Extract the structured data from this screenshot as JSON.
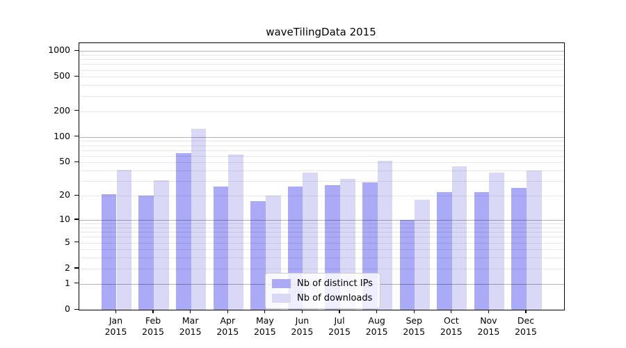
{
  "title": "waveTilingData 2015",
  "chart_data": {
    "type": "bar",
    "title": "waveTilingData 2015",
    "categories": [
      "Jan",
      "Feb",
      "Mar",
      "Apr",
      "May",
      "Jun",
      "Jul",
      "Aug",
      "Sep",
      "Oct",
      "Nov",
      "Dec"
    ],
    "category_year": "2015",
    "series": [
      {
        "name": "Nb of distinct IPs",
        "color": "#aaaaf7",
        "values": [
          21,
          20,
          64,
          26,
          17,
          26,
          27,
          29,
          10,
          22,
          22,
          25
        ]
      },
      {
        "name": "Nb of downloads",
        "color": "#d9d9f7",
        "values": [
          41,
          31,
          124,
          62,
          20,
          38,
          32,
          52,
          18,
          45,
          38,
          40
        ]
      }
    ],
    "xlabel": "",
    "ylabel": "",
    "y_scale": "log1p",
    "ylim": [
      0,
      1230
    ],
    "y_tick_values": [
      1000,
      500,
      200,
      100,
      50,
      20,
      10,
      5,
      2,
      1,
      0
    ],
    "y_major_grid_values": [
      1,
      10,
      100,
      1000
    ],
    "y_minor_grid_values": [
      2,
      3,
      4,
      5,
      6,
      7,
      8,
      9,
      20,
      30,
      40,
      50,
      60,
      70,
      80,
      90,
      200,
      300,
      400,
      500,
      600,
      700,
      800,
      900
    ],
    "grid": "horizontal major+minor, drawn over bars",
    "legend_position": "inside lower-center"
  },
  "legend": {
    "items": [
      {
        "label": "Nb of distinct IPs",
        "color": "#aaaaf7"
      },
      {
        "label": "Nb of downloads",
        "color": "#d9d9f7"
      }
    ]
  },
  "colors": {
    "background": "#ffffff",
    "spine": "#000000",
    "series_dark": "#aaaaf7",
    "series_light": "#d9d9f7",
    "major_grid": "rgba(0,0,0,0.30)",
    "minor_grid": "rgba(0,0,0,0.09)"
  }
}
